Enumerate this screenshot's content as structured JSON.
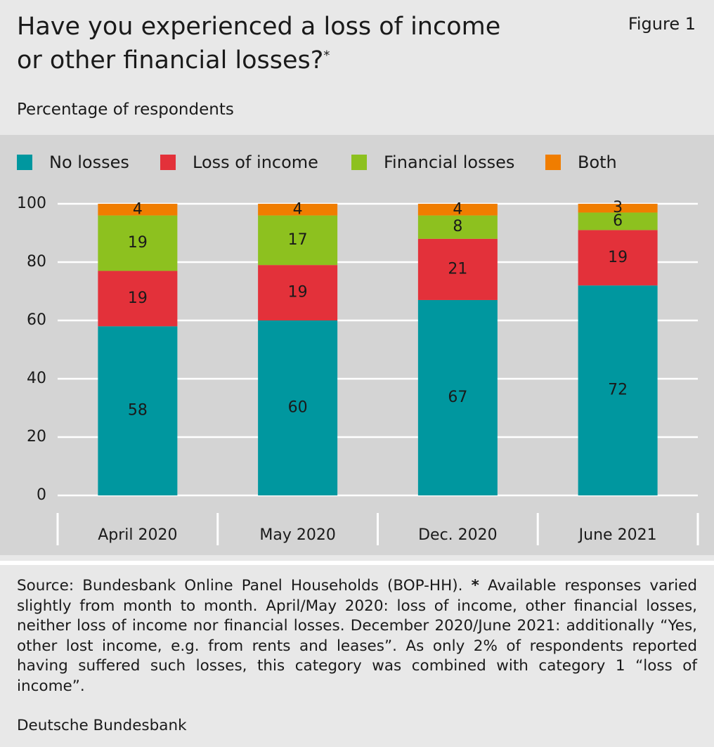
{
  "chart_data": {
    "type": "stacked_bar",
    "title": [
      "Have you experienced a loss of income",
      "or other financial losses?"
    ],
    "title_marker": "*",
    "figure_label": "Figure 1",
    "subtitle": "Percentage of respondents",
    "categories": [
      "April 2020",
      "May 2020",
      "Dec. 2020",
      "June 2021"
    ],
    "series": [
      {
        "name": "No losses",
        "color": "#00979f",
        "values": [
          58,
          60,
          67,
          72
        ]
      },
      {
        "name": "Loss of income",
        "color": "#e3313a",
        "values": [
          19,
          19,
          21,
          19
        ]
      },
      {
        "name": "Financial losses",
        "color": "#8dc11f",
        "values": [
          19,
          17,
          8,
          6
        ]
      },
      {
        "name": "Both",
        "color": "#f07d00",
        "values": [
          4,
          4,
          4,
          3
        ]
      }
    ],
    "ylim": [
      0,
      100
    ],
    "yticks": [
      0,
      20,
      40,
      60,
      80,
      100
    ],
    "grid": true,
    "legend": "top",
    "note": {
      "source": "Source: Bundesbank Online Panel Households (BOP-HH).",
      "marker": "*",
      "text": "Available responses varied slightly from month to month. April/May 2020: loss of income, other financial losses, neither loss of income nor financial losses. December 2020/June 2021: additionally “Yes, other lost income, e.g. from rents and leases”. As only 2% of respondents reported having suffered such losses, this category was combined with category 1 “loss of income”."
    },
    "credit": "Deutsche Bundesbank"
  }
}
